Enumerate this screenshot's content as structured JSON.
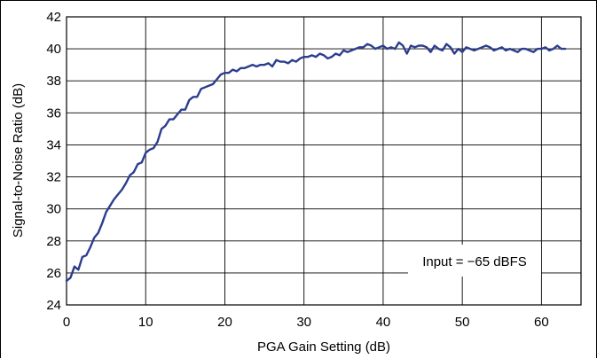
{
  "chart_data": {
    "type": "line",
    "title": "",
    "xlabel": "PGA Gain Setting (dB)",
    "ylabel": "Signal-to-Noise Ratio (dB)",
    "xlim": [
      0,
      65
    ],
    "ylim": [
      24,
      42
    ],
    "xticks": [
      0,
      10,
      20,
      30,
      40,
      50,
      60
    ],
    "yticks": [
      24,
      26,
      28,
      30,
      32,
      34,
      36,
      38,
      40,
      42
    ],
    "grid": true,
    "annotation": "Input = −65 dBFS",
    "colors": {
      "line": "#2b3d8f",
      "grid": "#000000"
    },
    "series": [
      {
        "name": "",
        "x": [
          0,
          0.5,
          1,
          1.5,
          2,
          2.5,
          3,
          3.5,
          4,
          4.5,
          5,
          5.5,
          6,
          6.5,
          7,
          7.5,
          8,
          8.5,
          9,
          9.5,
          10,
          10.5,
          11,
          11.5,
          12,
          12.5,
          13,
          13.5,
          14,
          14.5,
          15,
          15.5,
          16,
          16.5,
          17,
          17.5,
          18,
          18.5,
          19,
          19.5,
          20,
          20.5,
          21,
          21.5,
          22,
          22.5,
          23,
          23.5,
          24,
          24.5,
          25,
          25.5,
          26,
          26.5,
          27,
          27.5,
          28,
          28.5,
          29,
          29.5,
          30,
          30.5,
          31,
          31.5,
          32,
          32.5,
          33,
          33.5,
          34,
          34.5,
          35,
          35.5,
          36,
          36.5,
          37,
          37.5,
          38,
          38.5,
          39,
          39.5,
          40,
          40.5,
          41,
          41.5,
          42,
          42.5,
          43,
          43.5,
          44,
          44.5,
          45,
          45.5,
          46,
          46.5,
          47,
          47.5,
          48,
          48.5,
          49,
          49.5,
          50,
          50.5,
          51,
          51.5,
          52,
          52.5,
          53,
          53.5,
          54,
          54.5,
          55,
          55.5,
          56,
          56.5,
          57,
          57.5,
          58,
          58.5,
          59,
          59.5,
          60,
          60.5,
          61,
          61.5,
          62,
          62.5,
          63
        ],
        "y": [
          25.5,
          25.7,
          26.4,
          26.2,
          27.0,
          27.1,
          27.6,
          28.2,
          28.5,
          29.1,
          29.8,
          30.2,
          30.6,
          30.9,
          31.2,
          31.6,
          32.1,
          32.3,
          32.8,
          32.9,
          33.5,
          33.7,
          33.8,
          34.2,
          35.0,
          35.2,
          35.6,
          35.6,
          35.9,
          36.2,
          36.2,
          36.8,
          37.0,
          37.0,
          37.5,
          37.6,
          37.7,
          37.8,
          38.1,
          38.4,
          38.5,
          38.5,
          38.7,
          38.6,
          38.8,
          38.8,
          38.9,
          39.0,
          38.9,
          39.0,
          39.0,
          39.1,
          38.9,
          39.3,
          39.2,
          39.2,
          39.1,
          39.3,
          39.2,
          39.4,
          39.5,
          39.5,
          39.6,
          39.5,
          39.7,
          39.6,
          39.4,
          39.5,
          39.7,
          39.6,
          39.9,
          39.8,
          39.9,
          40.0,
          40.1,
          40.1,
          40.3,
          40.2,
          40.0,
          40.1,
          40.2,
          40.0,
          40.1,
          40.0,
          40.4,
          40.2,
          39.7,
          40.2,
          40.1,
          40.2,
          40.2,
          40.1,
          39.8,
          40.2,
          40.0,
          39.9,
          40.3,
          40.1,
          39.7,
          40.0,
          39.8,
          40.1,
          40.0,
          39.9,
          40.0,
          40.1,
          40.2,
          40.1,
          39.9,
          40.0,
          40.1,
          39.9,
          40.0,
          39.9,
          39.8,
          40.0,
          40.0,
          39.9,
          39.8,
          40.0,
          40.0,
          40.1,
          39.9,
          40.0,
          40.2,
          40.0,
          40.0
        ]
      }
    ]
  }
}
